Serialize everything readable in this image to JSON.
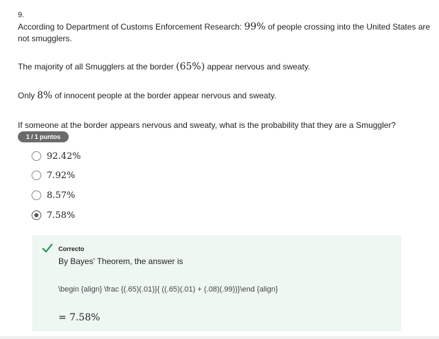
{
  "question": {
    "number": "9.",
    "p1_before": "According to Department of Customs Enforcement Research: ",
    "p1_math": "99%",
    "p1_after": " of people crossing into the United States are not smugglers.",
    "p2_before": "The majority of all Smugglers at the border ",
    "p2_math": "(65%)",
    "p2_after": " appear nervous and sweaty.",
    "p3_before": "Only ",
    "p3_math": "8%",
    "p3_after": " of innocent people at the border appear nervous and sweaty.",
    "p4": "If someone at the border appears nervous and sweaty, what is the probability that they are a Smuggler?",
    "score_badge": "1 / 1 puntos"
  },
  "options": [
    {
      "label": "92.42%",
      "selected": false
    },
    {
      "label": "7.92%",
      "selected": false
    },
    {
      "label": "8.57%",
      "selected": false
    },
    {
      "label": "7.58%",
      "selected": true
    }
  ],
  "feedback": {
    "status": "Correcto",
    "status_icon": "check-icon",
    "status_color": "#1e8a4c",
    "explanation": "By Bayes' Theorem, the answer is",
    "latex": "\\begin {align} \\frac {(.65)(.01)}{ ((.65)(.01) + (.08)(.99))}\\end {align}",
    "result": "= 7.58%"
  }
}
